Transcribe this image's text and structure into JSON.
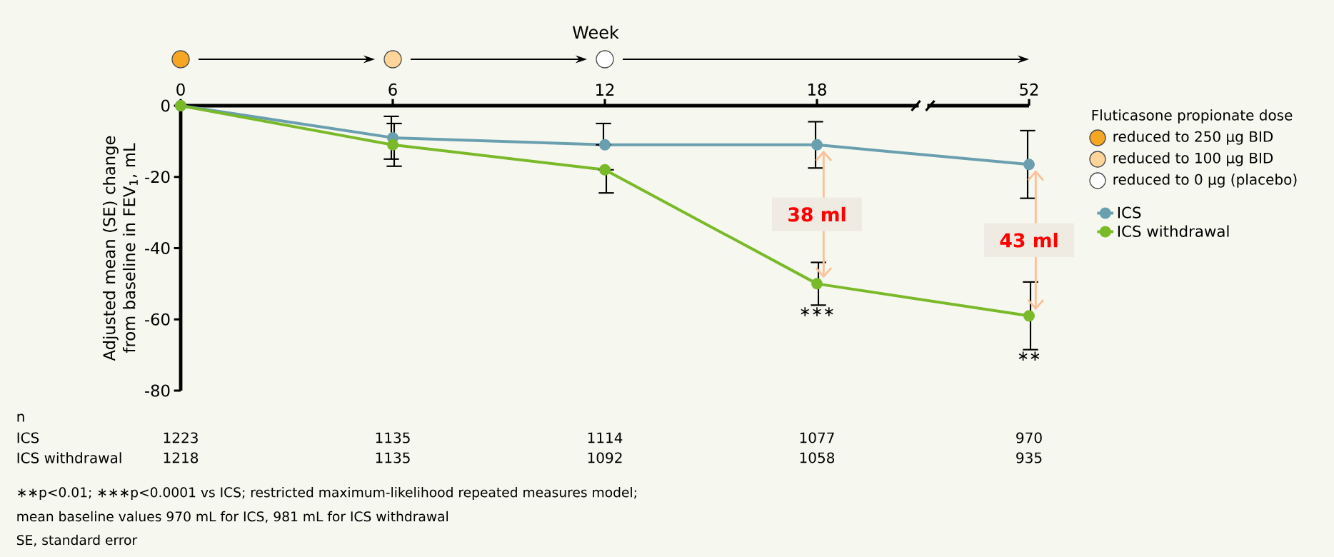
{
  "chart_data": {
    "type": "line",
    "categories": [
      "0",
      "6",
      "12",
      "18",
      "52"
    ],
    "ylabel": "Adjusted mean (SE) change from baseline in FEV$_{1}$, mL",
    "ylim": [
      -80,
      0
    ],
    "yticks": [
      -80,
      -60,
      -40,
      -20,
      0
    ],
    "marker": "circle",
    "legend": "right",
    "legend_title": "Fluticasone propionate dose",
    "series": [
      {
        "name": "ICS",
        "color": "#6a9fb0",
        "values": [
          0,
          -9,
          -11,
          -11,
          -16.5
        ],
        "errors": [
          null,
          6,
          [
            -11,
            -5
          ],
          6.5,
          9.5
        ]
      },
      {
        "name": "ICS withdrawal",
        "color": "#7ab929",
        "values": [
          0,
          -11,
          -18,
          -50,
          -59
        ],
        "errors": [
          null,
          6,
          [
            -24.5,
            -18
          ],
          6,
          9.5
        ]
      }
    ],
    "annotations": [
      "Week",
      "n",
      "1223",
      "1135",
      "1114",
      "1077",
      "970",
      "1218",
      "1135",
      "1092",
      "1058",
      "935",
      "reduced to 250 µg BID",
      "reduced to 100 µg BID",
      "reduced to 0 µg (placebo)",
      "38 ml",
      "43 ml",
      "∗∗p<0.01; ∗∗∗p<0.0001 vs ICS; restricted maximum-likelihood repeated measures model;",
      "mean baseline values 970 mL for ICS, 981 mL for ICS withdrawal",
      "SE, standard error",
      {
        "text": "∗∗∗",
        "x": "18",
        "y": -56
      },
      {
        "text": "∗∗",
        "x": "52",
        "y": -68.5
      }
    ]
  }
}
